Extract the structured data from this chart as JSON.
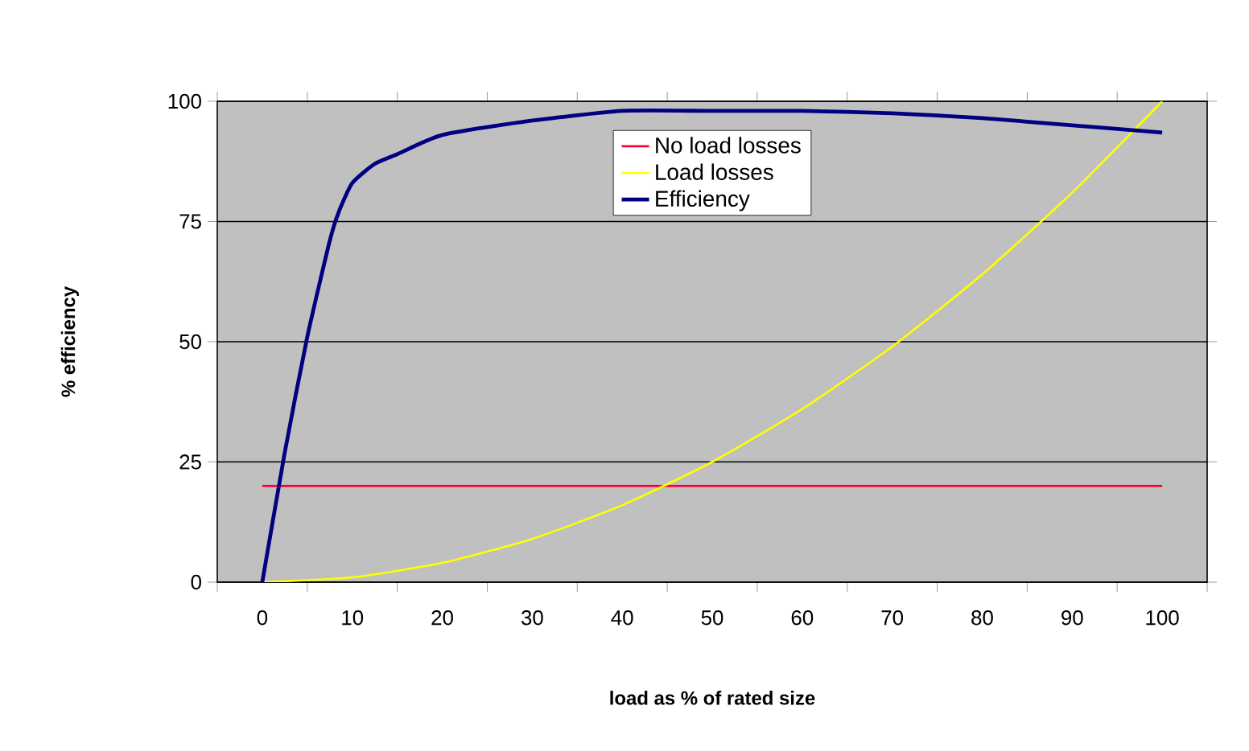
{
  "chart_data": {
    "type": "line",
    "xlabel": "load as % of rated size",
    "ylabel": "% efficiency",
    "x": [
      0,
      10,
      20,
      30,
      40,
      50,
      60,
      70,
      80,
      90,
      100
    ],
    "series": [
      {
        "name": "No load losses",
        "color": "#ff0033",
        "values": [
          20,
          20,
          20,
          20,
          20,
          20,
          20,
          20,
          20,
          20,
          20
        ]
      },
      {
        "name": "Load losses",
        "color": "#ffff00",
        "values": [
          0,
          1,
          4,
          9,
          16,
          25,
          36,
          49,
          64,
          81,
          100
        ]
      },
      {
        "name": "Efficiency",
        "color": "#000080",
        "x": [
          0,
          2.5,
          5,
          7.5,
          8.5,
          10,
          12.5,
          15,
          20,
          30,
          40,
          50,
          60,
          70,
          80,
          90,
          100
        ],
        "values": [
          0,
          27,
          51,
          71,
          77,
          83,
          87,
          89,
          93,
          96,
          98,
          98,
          98,
          97.5,
          96.5,
          95,
          93.5
        ]
      }
    ],
    "xlim": [
      -5,
      105
    ],
    "xticks": [
      0,
      10,
      20,
      30,
      40,
      50,
      60,
      70,
      80,
      90,
      100,
      {
        "value": -5,
        "label": null
      },
      {
        "value": 5,
        "label": null
      },
      {
        "value": 15,
        "label": null
      },
      {
        "value": 25,
        "label": null
      },
      {
        "value": 35,
        "label": null
      },
      {
        "value": 45,
        "label": null
      },
      {
        "value": 55,
        "label": null
      },
      {
        "value": 65,
        "label": null
      },
      {
        "value": 75,
        "label": null
      },
      {
        "value": 85,
        "label": null
      },
      {
        "value": 95,
        "label": null
      },
      {
        "value": 105,
        "label": null
      }
    ],
    "ylim": [
      0,
      100
    ],
    "yticks": [
      0,
      25,
      50,
      75,
      100
    ],
    "grid": "y",
    "legend": "top",
    "marker": "none",
    "line_style": "solid"
  }
}
